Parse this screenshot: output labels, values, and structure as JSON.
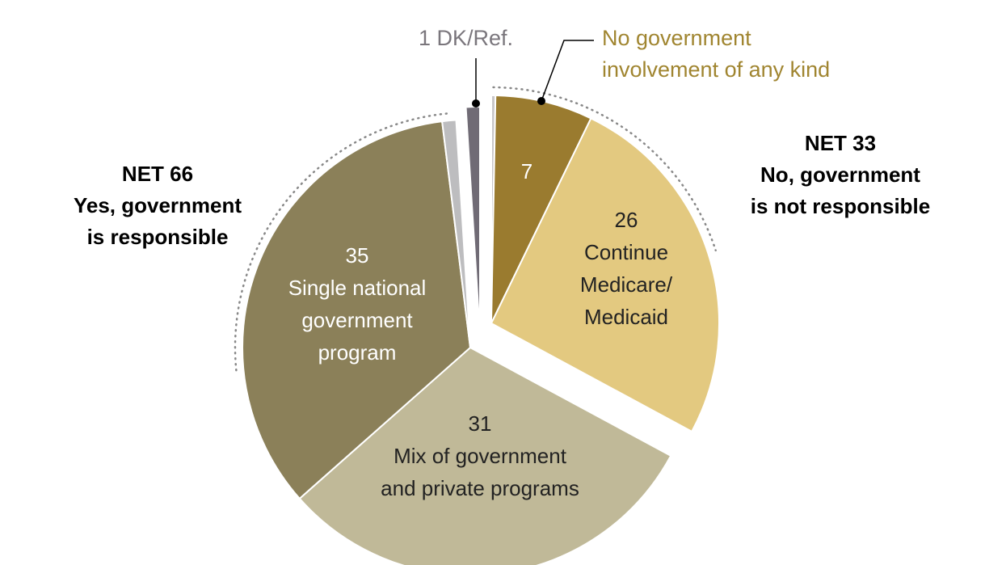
{
  "chart_data": {
    "type": "pie",
    "slices": [
      {
        "key": "no_other",
        "label": "",
        "value": 0.3,
        "color": "#c9c7c9",
        "group": "no"
      },
      {
        "key": "no_gov",
        "label": "No government involvement of any kind",
        "value": 7,
        "color": "#9a7b2f",
        "group": "no"
      },
      {
        "key": "medicare",
        "label": "Continue Medicare/ Medicaid",
        "value": 26,
        "color": "#e3c980",
        "group": "no"
      },
      {
        "key": "mix",
        "label": "Mix of government and private programs",
        "value": 31,
        "color": "#c0b998",
        "group": "yes"
      },
      {
        "key": "single",
        "label": "Single national government program",
        "value": 35,
        "color": "#8b8059",
        "group": "yes"
      },
      {
        "key": "yes_other",
        "label": "",
        "value": 1,
        "color": "#bdbdbf",
        "group": "yes"
      },
      {
        "key": "dk",
        "label": "DK/Ref.",
        "value": 1,
        "color": "#706b75",
        "group": "dk"
      }
    ],
    "groups": {
      "yes": {
        "net_label": "NET 66",
        "value": 66,
        "text": [
          "Yes, government",
          "is responsible"
        ]
      },
      "no": {
        "net_label": "NET 33",
        "value": 33,
        "text": [
          "No, government",
          "is not responsible"
        ]
      }
    },
    "data_labels": {
      "no_gov": {
        "value": "7"
      },
      "medicare": {
        "value": "26",
        "text": [
          "Continue",
          "Medicare/",
          "Medicaid"
        ]
      },
      "mix": {
        "value": "31",
        "text": [
          "Mix of government",
          "and private programs"
        ]
      },
      "single": {
        "value": "35",
        "text": [
          "Single national",
          "government",
          "program"
        ]
      },
      "dk": {
        "value": "1 DK/Ref."
      },
      "no_gov_callout": [
        "No government",
        "involvement of any kind"
      ]
    },
    "label_color_gold": "#a08530",
    "label_color_gray": "#7a767c"
  }
}
